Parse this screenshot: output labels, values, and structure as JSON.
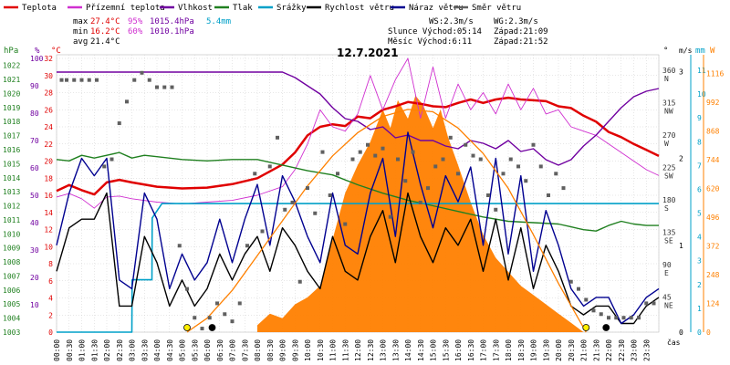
{
  "chart_data": {
    "type": "line",
    "title": "12.7.2021",
    "legend": [
      {
        "label": "Teplota",
        "color": "#e00000"
      },
      {
        "label": "Přízemní teplota",
        "color": "#d030d0"
      },
      {
        "label": "Vlhkost",
        "color": "#7000a0"
      },
      {
        "label": "Tlak",
        "color": "#208020"
      },
      {
        "label": "Srážky",
        "color": "#00a0c8"
      },
      {
        "label": "Rychlost větru",
        "color": "#000000"
      },
      {
        "label": "Náraz větru",
        "color": "#000090"
      },
      {
        "label": "Směr větru",
        "color": "#606060"
      }
    ],
    "stats": {
      "max_label": "max",
      "max_temp": "27.4°C",
      "max_hum": "95%",
      "max_press": "1015.4hPa",
      "rain": "5.4mm",
      "min_label": "min",
      "min_temp": "16.2°C",
      "min_hum": "60%",
      "min_press": "1010.1hPa",
      "avg_label": "avg",
      "avg_temp": "21.4°C"
    },
    "info": {
      "ws": "WS:2.3m/s",
      "wg": "WG:2.3m/s",
      "sun": "Slunce Východ:05:14",
      "sun_set": "Západ:21:09",
      "moon": "Měsíc  Východ:6:11",
      "moon_set": "Západ:21:52"
    },
    "axes": {
      "hpa_unit": "hPa",
      "pct_unit": "%",
      "deg_unit": "°C",
      "dir_unit": "°",
      "mm_unit": "mm",
      "ms_unit": "m/s",
      "w_unit": "W",
      "time_label": "čas",
      "hpa_ticks": [
        "1022",
        "1021",
        "1020",
        "1019",
        "1018",
        "1017",
        "1016",
        "1015",
        "1014",
        "1013",
        "1012",
        "1011",
        "1010",
        "1009",
        "1008",
        "1007",
        "1006",
        "1005",
        "1004",
        "1003"
      ],
      "pct_ticks": [
        "100",
        "90",
        "80",
        "70",
        "60",
        "50",
        "40",
        "30",
        "20",
        "10"
      ],
      "temp_ticks": [
        "32",
        "30",
        "28",
        "26",
        "24",
        "22",
        "20",
        "18",
        "16",
        "14",
        "12",
        "10",
        "8",
        "6",
        "4",
        "2",
        "0"
      ],
      "dir_ticks": [
        {
          "v": "360",
          "d": "N"
        },
        {
          "v": "315",
          "d": "NW"
        },
        {
          "v": "270",
          "d": "W"
        },
        {
          "v": "225",
          "d": "SW"
        },
        {
          "v": "180",
          "d": "S"
        },
        {
          "v": "135",
          "d": "SE"
        },
        {
          "v": "90",
          "d": "E"
        },
        {
          "v": "45",
          "d": "NE"
        }
      ],
      "mm_ticks": [
        "11",
        "10",
        "9",
        "8",
        "7",
        "6",
        "5",
        "4",
        "3",
        "2",
        "1",
        "0"
      ],
      "ms_ticks": [
        "3",
        "2",
        "1",
        "0"
      ],
      "w_ticks": [
        "1116",
        "992",
        "868",
        "744",
        "620",
        "496",
        "372",
        "248",
        "124",
        "0"
      ],
      "time_ticks": [
        "00:00",
        "00:30",
        "01:00",
        "01:30",
        "02:00",
        "02:30",
        "03:00",
        "03:30",
        "04:00",
        "04:30",
        "05:00",
        "05:30",
        "06:00",
        "06:30",
        "07:00",
        "07:30",
        "08:00",
        "08:30",
        "09:00",
        "09:30",
        "10:00",
        "10:30",
        "11:00",
        "11:30",
        "12:00",
        "12:30",
        "13:00",
        "13:30",
        "14:00",
        "14:30",
        "15:00",
        "15:30",
        "16:00",
        "16:30",
        "17:00",
        "17:30",
        "18:00",
        "18:30",
        "19:00",
        "19:30",
        "20:00",
        "20:30",
        "21:00",
        "21:30",
        "22:00",
        "22:30",
        "23:00",
        "23:30"
      ]
    },
    "x_hours": [
      0,
      1,
      2,
      3,
      4,
      5,
      6,
      7,
      8,
      9,
      10,
      11,
      12,
      13,
      14,
      15,
      16,
      17,
      18,
      19,
      20,
      21,
      22,
      23,
      24
    ],
    "series": [
      {
        "name": "Teplota",
        "axis": "temp",
        "color": "#e00000",
        "x": [
          0,
          0.5,
          1,
          1.5,
          2,
          2.5,
          3,
          4,
          5,
          6,
          7,
          8,
          8.5,
          9,
          9.5,
          10,
          10.5,
          11,
          11.5,
          12,
          12.5,
          13,
          13.5,
          14,
          14.5,
          15,
          15.5,
          16,
          16.5,
          17,
          17.5,
          18,
          18.5,
          19,
          19.5,
          20,
          20.5,
          21,
          21.5,
          22,
          22.5,
          23,
          23.5,
          24
        ],
        "y": [
          16.5,
          17.2,
          16.6,
          16.1,
          17.5,
          17.8,
          17.5,
          17.0,
          16.8,
          16.9,
          17.3,
          18.0,
          18.8,
          19.6,
          21.0,
          23.0,
          24.0,
          24.3,
          24.1,
          25.2,
          25.0,
          26.0,
          26.4,
          26.9,
          26.7,
          26.4,
          26.3,
          26.8,
          27.2,
          26.8,
          27.2,
          27.4,
          27.2,
          27.1,
          27.0,
          26.4,
          26.2,
          25.3,
          24.6,
          23.4,
          22.8,
          22.0,
          21.3,
          20.6
        ]
      },
      {
        "name": "Přízemní teplota",
        "axis": "temp",
        "color": "#d030d0",
        "x": [
          0,
          0.5,
          1,
          1.5,
          2,
          2.5,
          3,
          4,
          5,
          6,
          7,
          8,
          9,
          9.5,
          10,
          10.5,
          11,
          11.5,
          12,
          12.5,
          13,
          13.5,
          14,
          14.5,
          15,
          15.5,
          16,
          16.5,
          17,
          17.5,
          18,
          18.5,
          19,
          19.5,
          20,
          20.5,
          21,
          21.5,
          22,
          22.5,
          23,
          23.5,
          24
        ],
        "y": [
          15.8,
          16.2,
          15.6,
          14.5,
          15.8,
          15.9,
          15.6,
          15.2,
          15.0,
          15.2,
          15.4,
          16.0,
          17.0,
          19.0,
          22.0,
          26.0,
          24.0,
          23.5,
          25.5,
          30.0,
          26.0,
          29.5,
          32.0,
          25.0,
          31.0,
          25.0,
          29.0,
          26.0,
          28.0,
          25.5,
          29.0,
          26.0,
          28.5,
          25.5,
          26.0,
          24.0,
          23.5,
          23.0,
          22.0,
          21.0,
          20.0,
          19.0,
          18.3
        ]
      },
      {
        "name": "Vlhkost",
        "axis": "pct",
        "color": "#7000a0",
        "x": [
          0,
          1,
          2,
          3,
          4,
          5,
          6,
          7,
          8,
          9,
          9.5,
          10,
          10.5,
          11,
          11.5,
          12,
          12.5,
          13,
          13.5,
          14,
          14.5,
          15,
          15.5,
          16,
          16.5,
          17,
          17.5,
          18,
          18.5,
          19,
          19.5,
          20,
          20.5,
          21,
          21.5,
          22,
          22.5,
          23,
          23.5,
          24
        ],
        "y": [
          95,
          95,
          95,
          95,
          95,
          95,
          95,
          95,
          95,
          95,
          93,
          90,
          87,
          82,
          78,
          77,
          74,
          75,
          71,
          72,
          70,
          70,
          68,
          67,
          70,
          69,
          67,
          70,
          66,
          67,
          63,
          61,
          63,
          68,
          72,
          77,
          82,
          86,
          88,
          89
        ]
      },
      {
        "name": "Tlak",
        "axis": "hpa",
        "color": "#208020",
        "x": [
          0,
          0.5,
          1,
          1.5,
          2,
          2.5,
          3,
          3.5,
          4,
          5,
          6,
          7,
          8,
          9,
          10,
          11,
          12,
          13,
          14,
          15,
          16,
          17,
          18,
          19,
          20,
          20.5,
          21,
          21.5,
          22,
          22.5,
          23,
          23.5,
          24
        ],
        "y": [
          1015.3,
          1015.2,
          1015.6,
          1015.4,
          1015.6,
          1015.8,
          1015.4,
          1015.6,
          1015.5,
          1015.3,
          1015.2,
          1015.3,
          1015.3,
          1014.9,
          1014.5,
          1014.2,
          1013.5,
          1012.9,
          1012.4,
          1012.0,
          1011.6,
          1011.2,
          1010.9,
          1010.8,
          1010.7,
          1010.5,
          1010.3,
          1010.2,
          1010.6,
          1010.9,
          1010.7,
          1010.6,
          1010.6
        ]
      },
      {
        "name": "Srážky",
        "axis": "mm",
        "color": "#00a0c8",
        "x": [
          0,
          3.0,
          3.01,
          3.8,
          3.81,
          4.2,
          4.21,
          24
        ],
        "y": [
          0,
          0,
          2.2,
          2.2,
          4.8,
          5.4,
          5.4,
          5.4
        ]
      },
      {
        "name": "Rychlost větru",
        "axis": "ms",
        "color": "#000000",
        "x": [
          0,
          0.5,
          1,
          1.5,
          2,
          2.5,
          3,
          3.5,
          4,
          4.5,
          5,
          5.5,
          6,
          6.5,
          7,
          7.5,
          8,
          8.5,
          9,
          9.5,
          10,
          10.5,
          11,
          11.5,
          12,
          12.5,
          13,
          13.5,
          14,
          14.5,
          15,
          15.5,
          16,
          16.5,
          17,
          17.5,
          18,
          18.5,
          19,
          19.5,
          20,
          20.5,
          21,
          21.5,
          22,
          22.5,
          23,
          23.5,
          24
        ],
        "y": [
          0.7,
          1.2,
          1.3,
          1.3,
          1.6,
          0.3,
          0.3,
          1.1,
          0.8,
          0.3,
          0.6,
          0.3,
          0.5,
          0.9,
          0.6,
          0.9,
          1.1,
          0.7,
          1.2,
          1.0,
          0.7,
          0.5,
          1.1,
          0.7,
          0.6,
          1.1,
          1.4,
          0.8,
          1.6,
          1.1,
          0.8,
          1.2,
          1.0,
          1.3,
          0.7,
          1.3,
          0.6,
          1.2,
          0.5,
          1.0,
          0.7,
          0.3,
          0.2,
          0.3,
          0.3,
          0.1,
          0.1,
          0.3,
          0.4
        ]
      },
      {
        "name": "Náraz větru",
        "axis": "ms",
        "color": "#000090",
        "x": [
          0,
          0.5,
          1,
          1.5,
          2,
          2.5,
          3,
          3.5,
          4,
          4.5,
          5,
          5.5,
          6,
          6.5,
          7,
          7.5,
          8,
          8.5,
          9,
          9.5,
          10,
          10.5,
          11,
          11.5,
          12,
          12.5,
          13,
          13.5,
          14,
          14.5,
          15,
          15.5,
          16,
          16.5,
          17,
          17.5,
          18,
          18.5,
          19,
          19.5,
          20,
          20.5,
          21,
          21.5,
          22,
          22.5,
          23,
          23.5,
          24
        ],
        "y": [
          1.0,
          1.6,
          2.0,
          1.8,
          2.0,
          0.6,
          0.5,
          1.6,
          1.3,
          0.5,
          0.9,
          0.6,
          0.8,
          1.3,
          0.8,
          1.3,
          1.7,
          1.0,
          1.8,
          1.5,
          1.1,
          0.8,
          1.6,
          1.0,
          0.9,
          1.6,
          2.0,
          1.1,
          2.3,
          1.7,
          1.2,
          1.8,
          1.5,
          1.9,
          1.0,
          2.0,
          0.9,
          1.8,
          0.7,
          1.4,
          1.0,
          0.5,
          0.3,
          0.4,
          0.4,
          0.1,
          0.2,
          0.4,
          0.5
        ]
      },
      {
        "name": "Směr větru",
        "axis": "dir",
        "color": "#606060",
        "type": "scatter",
        "x": [
          0.2,
          0.4,
          0.7,
          1.0,
          1.3,
          1.6,
          1.9,
          2.2,
          2.5,
          2.8,
          3.1,
          3.4,
          3.7,
          4.0,
          4.3,
          4.6,
          4.9,
          5.2,
          5.5,
          5.8,
          6.1,
          6.4,
          6.7,
          7.0,
          7.3,
          7.6,
          7.9,
          8.2,
          8.5,
          8.8,
          9.1,
          9.4,
          9.7,
          10.0,
          10.3,
          10.6,
          10.9,
          11.2,
          11.5,
          11.8,
          12.1,
          12.4,
          12.7,
          13.0,
          13.3,
          13.6,
          13.9,
          14.2,
          14.5,
          14.8,
          15.1,
          15.4,
          15.7,
          16.0,
          16.3,
          16.6,
          16.9,
          17.2,
          17.5,
          17.8,
          18.1,
          18.4,
          18.7,
          19.0,
          19.3,
          19.6,
          19.9,
          20.2,
          20.5,
          20.8,
          21.1,
          21.4,
          21.7,
          22.0,
          22.3,
          22.6,
          22.9,
          23.2,
          23.5,
          23.8
        ],
        "y": [
          350,
          350,
          350,
          350,
          350,
          350,
          230,
          240,
          290,
          320,
          350,
          360,
          350,
          340,
          340,
          340,
          120,
          60,
          20,
          5,
          20,
          40,
          25,
          15,
          40,
          120,
          220,
          140,
          230,
          270,
          170,
          180,
          70,
          200,
          165,
          250,
          190,
          220,
          150,
          240,
          250,
          260,
          245,
          255,
          160,
          240,
          210,
          250,
          180,
          200,
          230,
          240,
          270,
          220,
          260,
          245,
          240,
          190,
          170,
          220,
          240,
          230,
          210,
          260,
          230,
          190,
          220,
          200,
          70,
          60,
          45,
          30,
          25,
          20,
          20,
          20,
          20,
          20,
          40,
          40
        ]
      },
      {
        "name": "Sluneční záření",
        "axis": "w",
        "color": "#ff8000",
        "type": "area",
        "x": [
          8.0,
          8.5,
          9.0,
          9.5,
          10.0,
          10.5,
          11.0,
          11.5,
          12.0,
          12.5,
          13.0,
          13.3,
          13.6,
          14.0,
          14.3,
          14.6,
          15.0,
          15.3,
          15.6,
          16.0,
          16.5,
          17.0,
          17.5,
          18.0,
          18.5,
          19.0,
          19.5,
          20.0,
          20.5,
          21.0
        ],
        "y": [
          30,
          80,
          60,
          120,
          150,
          200,
          400,
          600,
          720,
          820,
          960,
          880,
          1000,
          920,
          1020,
          980,
          880,
          960,
          840,
          720,
          560,
          420,
          320,
          260,
          200,
          160,
          120,
          80,
          40,
          0
        ]
      },
      {
        "name": "Teoretické záření",
        "axis": "w",
        "color": "#ff8000",
        "type": "curve",
        "x": [
          5.2,
          6,
          7,
          8,
          9,
          10,
          11,
          12,
          13,
          14,
          15,
          16,
          17,
          18,
          19,
          20,
          21.1
        ],
        "y": [
          0,
          60,
          180,
          330,
          480,
          630,
          760,
          860,
          930,
          960,
          950,
          880,
          770,
          620,
          420,
          210,
          0
        ]
      }
    ],
    "markers": [
      {
        "x": 5.2,
        "kind": "sun-rise",
        "color": "#ffee00"
      },
      {
        "x": 6.2,
        "kind": "moon-rise",
        "color": "#000000"
      },
      {
        "x": 21.1,
        "kind": "sun-set",
        "color": "#ffee00"
      },
      {
        "x": 21.9,
        "kind": "moon-set",
        "color": "#000000"
      }
    ],
    "ranges": {
      "temp": [
        0,
        32
      ],
      "pct": [
        0,
        100
      ],
      "hpa": [
        1003,
        1022.5
      ],
      "mm": [
        0,
        11.5
      ],
      "ms": [
        0,
        3.15
      ],
      "w": [
        0,
        1180
      ],
      "dir": [
        0,
        380
      ]
    }
  }
}
